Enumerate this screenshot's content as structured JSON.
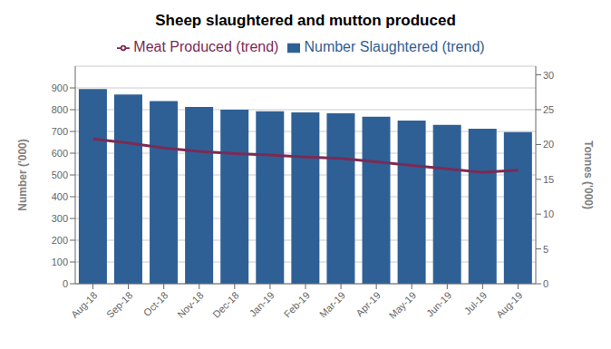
{
  "chart_data": {
    "type": "bar",
    "title": "Sheep slaughtered and mutton produced",
    "categories": [
      "Aug-18",
      "Sep-18",
      "Oct-18",
      "Nov-18",
      "Dec-18",
      "Jan-19",
      "Feb-19",
      "Mar-19",
      "Apr-19",
      "May-19",
      "Jun-19",
      "Jul-19",
      "Aug-19"
    ],
    "series": [
      {
        "name": "Number Slaughtered (trend)",
        "type": "bar",
        "color": "#2E6096",
        "values": [
          895,
          870,
          840,
          812,
          800,
          793,
          788,
          783,
          768,
          750,
          730,
          712,
          697
        ]
      },
      {
        "name": "Meat Produced (trend)",
        "type": "line",
        "color": "#7B2B55",
        "axis": "y2",
        "values": [
          20.8,
          20.2,
          19.5,
          19.0,
          18.7,
          18.5,
          18.2,
          18.0,
          17.5,
          17.0,
          16.5,
          16.0,
          16.3
        ]
      }
    ],
    "ylabel": "Number ('000)",
    "y2label": "Tonnes ('000)",
    "ylim": [
      0,
      1000
    ],
    "yticks": [
      0,
      100,
      200,
      300,
      400,
      500,
      600,
      700,
      800,
      900
    ],
    "y2lim": [
      0,
      31.25
    ],
    "y2ticks": [
      0,
      5,
      10,
      15,
      20,
      25,
      30
    ],
    "grid": true,
    "legend": "top"
  }
}
